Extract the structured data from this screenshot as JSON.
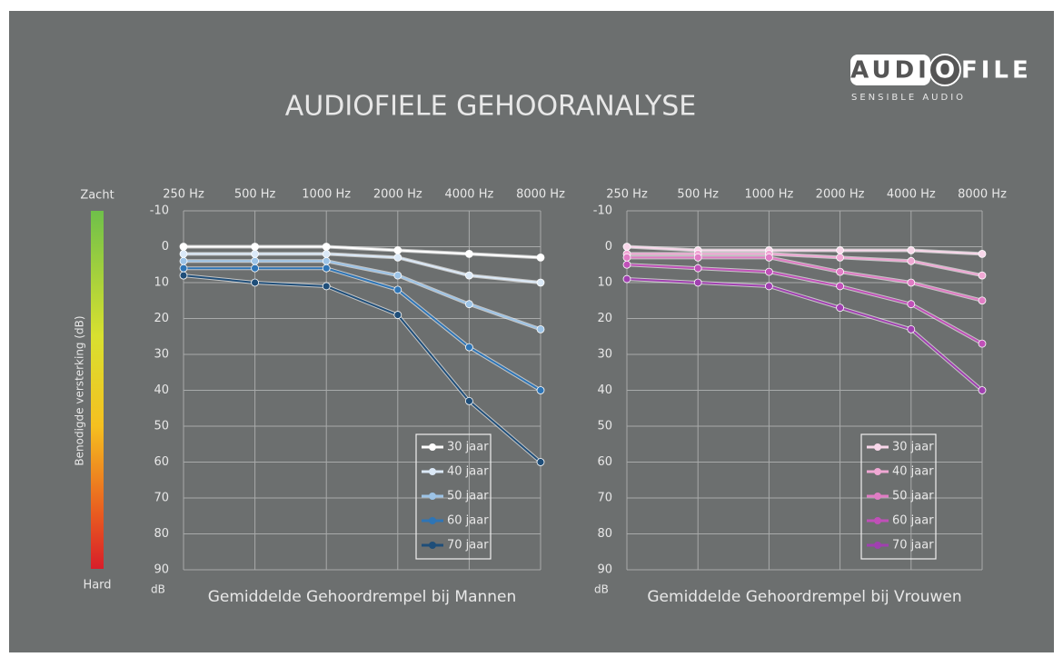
{
  "title": "AUDIOFIELE GEHOORANALYSE",
  "logo": {
    "parts": [
      "AUDI",
      "O",
      "FILE"
    ],
    "tagline": "SENSIBLE AUDIO"
  },
  "scale": {
    "label": "Benodigde versterking (dB)",
    "top": "Zacht",
    "bottom": "Hard"
  },
  "chart_data": [
    {
      "type": "line",
      "title": "Gemiddelde Gehoordrempel bij Mannen",
      "y_unit": "dB",
      "y_inverted": true,
      "grid": true,
      "legend": "lower-right",
      "categories": [
        "250 Hz",
        "500 Hz",
        "1000 Hz",
        "2000 Hz",
        "4000 Hz",
        "8000 Hz"
      ],
      "ylim": [
        -10,
        90
      ],
      "yticks": [
        -10,
        0,
        10,
        20,
        30,
        40,
        50,
        60,
        70,
        80,
        90
      ],
      "series": [
        {
          "name": "30 jaar",
          "color": "#ffffff",
          "values": [
            0,
            0,
            0,
            1,
            2,
            3
          ]
        },
        {
          "name": "40 jaar",
          "color": "#dbe9f7",
          "values": [
            2,
            2,
            2,
            3,
            8,
            10
          ]
        },
        {
          "name": "50 jaar",
          "color": "#9cc3e6",
          "values": [
            4,
            4,
            4,
            8,
            16,
            23
          ]
        },
        {
          "name": "60 jaar",
          "color": "#2e75b6",
          "values": [
            6,
            6,
            6,
            12,
            28,
            40
          ]
        },
        {
          "name": "70 jaar",
          "color": "#1f4e79",
          "values": [
            8,
            10,
            11,
            19,
            43,
            60
          ]
        }
      ]
    },
    {
      "type": "line",
      "title": "Gemiddelde Gehoordrempel bij Vrouwen",
      "y_unit": "dB",
      "y_inverted": true,
      "grid": true,
      "legend": "lower-right",
      "categories": [
        "250 Hz",
        "500 Hz",
        "1000 Hz",
        "2000 Hz",
        "4000 Hz",
        "8000 Hz"
      ],
      "ylim": [
        -10,
        90
      ],
      "yticks": [
        -10,
        0,
        10,
        20,
        30,
        40,
        50,
        60,
        70,
        80,
        90
      ],
      "series": [
        {
          "name": "30 jaar",
          "color": "#f8d7ea",
          "values": [
            0,
            1,
            1,
            1,
            1,
            2
          ]
        },
        {
          "name": "40 jaar",
          "color": "#f0a8d4",
          "values": [
            2,
            2,
            2,
            3,
            4,
            8
          ]
        },
        {
          "name": "50 jaar",
          "color": "#e07cc4",
          "values": [
            3,
            3,
            3,
            7,
            10,
            15
          ]
        },
        {
          "name": "60 jaar",
          "color": "#c050b8",
          "values": [
            5,
            6,
            7,
            11,
            16,
            27
          ]
        },
        {
          "name": "70 jaar",
          "color": "#a040b0",
          "values": [
            9,
            10,
            11,
            17,
            23,
            40
          ]
        }
      ]
    }
  ]
}
